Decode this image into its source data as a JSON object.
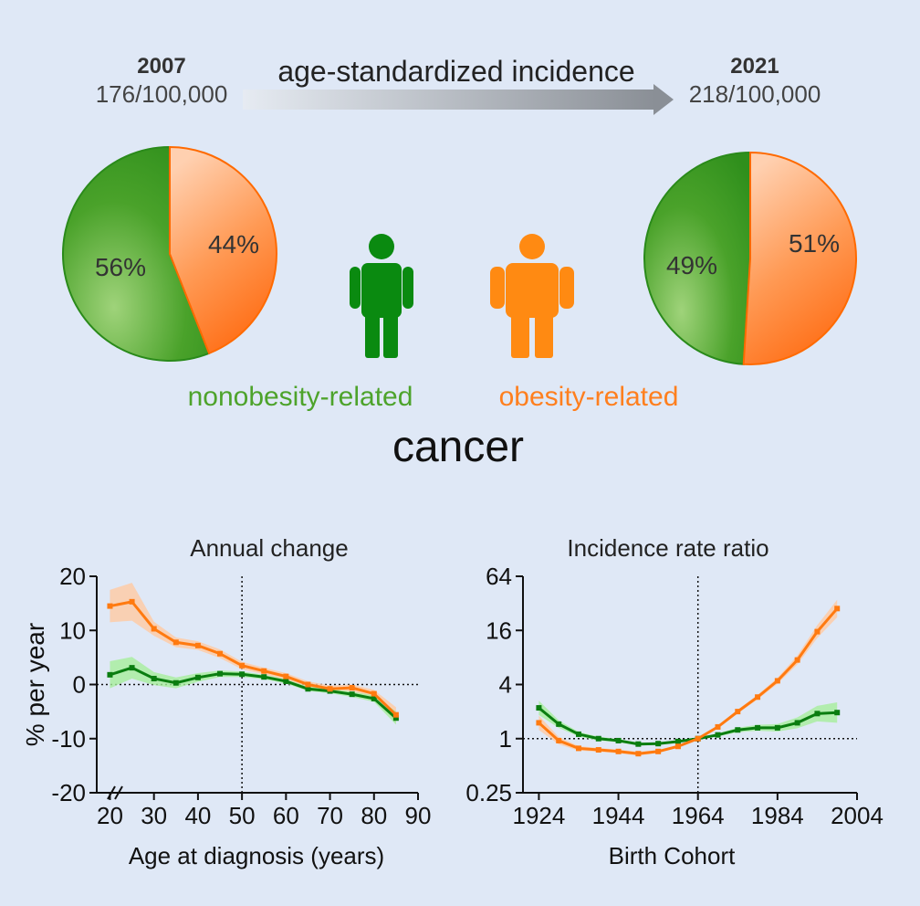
{
  "header": {
    "left_year": "2007",
    "left_rate": "176/100,000",
    "center_title": "age-standardized incidence",
    "right_year": "2021",
    "right_rate": "218/100,000"
  },
  "legend": {
    "nonobesity_label": "nonobesity-related",
    "obesity_label": "obesity-related",
    "center_word": "cancer"
  },
  "colors": {
    "background": "#dfe8f6",
    "green": "#1b8a1b",
    "green_dark": "#0a7d10",
    "orange": "#ff7a18",
    "orange_light": "#ffc9a6",
    "text": "#333333",
    "label_green": "#4da32b",
    "label_orange": "#ff7f1e"
  },
  "icons": [
    "person-icon-green",
    "person-icon-orange"
  ],
  "chart_data": [
    {
      "type": "pie",
      "year": "2007",
      "slices": [
        {
          "name": "nonobesity-related",
          "value": 56,
          "label": "56%"
        },
        {
          "name": "obesity-related",
          "value": 44,
          "label": "44%"
        }
      ]
    },
    {
      "type": "pie",
      "year": "2021",
      "slices": [
        {
          "name": "nonobesity-related",
          "value": 49,
          "label": "49%"
        },
        {
          "name": "obesity-related",
          "value": 51,
          "label": "51%"
        }
      ]
    },
    {
      "type": "line",
      "title": "Annual change",
      "xlabel": "Age at diagnosis (years)",
      "ylabel": "% per year",
      "xlim": [
        17,
        90
      ],
      "ylim": [
        -20,
        20
      ],
      "xticks": [
        20,
        30,
        40,
        50,
        60,
        70,
        80,
        90
      ],
      "yticks": [
        -20,
        -10,
        0,
        10,
        20
      ],
      "vline": 50,
      "hline": 0,
      "series": [
        {
          "name": "obesity-related",
          "x": [
            20,
            25,
            30,
            35,
            40,
            45,
            50,
            55,
            60,
            65,
            70,
            75,
            80,
            85
          ],
          "y": [
            14.5,
            15.3,
            10.3,
            7.8,
            7.2,
            5.7,
            3.5,
            2.5,
            1.5,
            0.0,
            -0.8,
            -0.6,
            -1.7,
            -5.6
          ],
          "band": [
            3.0,
            3.5,
            1.3,
            0.9,
            0.8,
            0.8,
            0.7,
            0.6,
            0.6,
            0.6,
            0.6,
            0.6,
            0.7,
            1.4
          ]
        },
        {
          "name": "nonobesity-related",
          "x": [
            20,
            25,
            30,
            35,
            40,
            45,
            50,
            55,
            60,
            65,
            70,
            75,
            80,
            85
          ],
          "y": [
            1.8,
            3.1,
            1.1,
            0.3,
            1.3,
            2.0,
            1.9,
            1.4,
            0.6,
            -0.8,
            -1.2,
            -1.8,
            -2.6,
            -6.2
          ],
          "band": [
            2.5,
            2.0,
            1.2,
            1.0,
            0.8,
            0.6,
            0.5,
            0.4,
            0.4,
            0.4,
            0.4,
            0.5,
            0.6,
            1.2
          ]
        }
      ]
    },
    {
      "type": "line",
      "title": "Incidence rate ratio",
      "xlabel": "Birth Cohort",
      "ylabel": "",
      "scale_y": "log",
      "xlim": [
        1920,
        2004
      ],
      "ylim": [
        0.25,
        64
      ],
      "xticks": [
        1924,
        1944,
        1964,
        1984,
        2004
      ],
      "yticks": [
        0.25,
        1,
        4,
        16,
        64
      ],
      "ytick_labels": [
        "0.25",
        "1",
        "4",
        "16",
        "64"
      ],
      "vline": 1964,
      "hline": 1,
      "series": [
        {
          "name": "obesity-related",
          "x": [
            1924,
            1929,
            1934,
            1939,
            1944,
            1949,
            1954,
            1959,
            1964,
            1969,
            1974,
            1979,
            1984,
            1989,
            1994,
            1999
          ],
          "y": [
            1.5,
            0.95,
            0.78,
            0.75,
            0.72,
            0.68,
            0.72,
            0.82,
            1.0,
            1.35,
            2.0,
            2.9,
            4.4,
            7.5,
            15.5,
            28.0
          ],
          "band": [
            1.2,
            1.1,
            1.06,
            1.05,
            1.05,
            1.05,
            1.04,
            1.03,
            1.0,
            1.04,
            1.05,
            1.06,
            1.08,
            1.12,
            1.18,
            1.25
          ]
        },
        {
          "name": "nonobesity-related",
          "x": [
            1924,
            1929,
            1934,
            1939,
            1944,
            1949,
            1954,
            1959,
            1964,
            1969,
            1974,
            1979,
            1984,
            1989,
            1994,
            1999
          ],
          "y": [
            2.2,
            1.45,
            1.12,
            1.0,
            0.95,
            0.87,
            0.88,
            0.93,
            1.0,
            1.1,
            1.25,
            1.32,
            1.32,
            1.5,
            1.9,
            1.95
          ],
          "band": [
            1.2,
            1.1,
            1.06,
            1.05,
            1.04,
            1.04,
            1.03,
            1.03,
            1.0,
            1.04,
            1.06,
            1.08,
            1.1,
            1.15,
            1.22,
            1.3
          ]
        }
      ]
    }
  ]
}
